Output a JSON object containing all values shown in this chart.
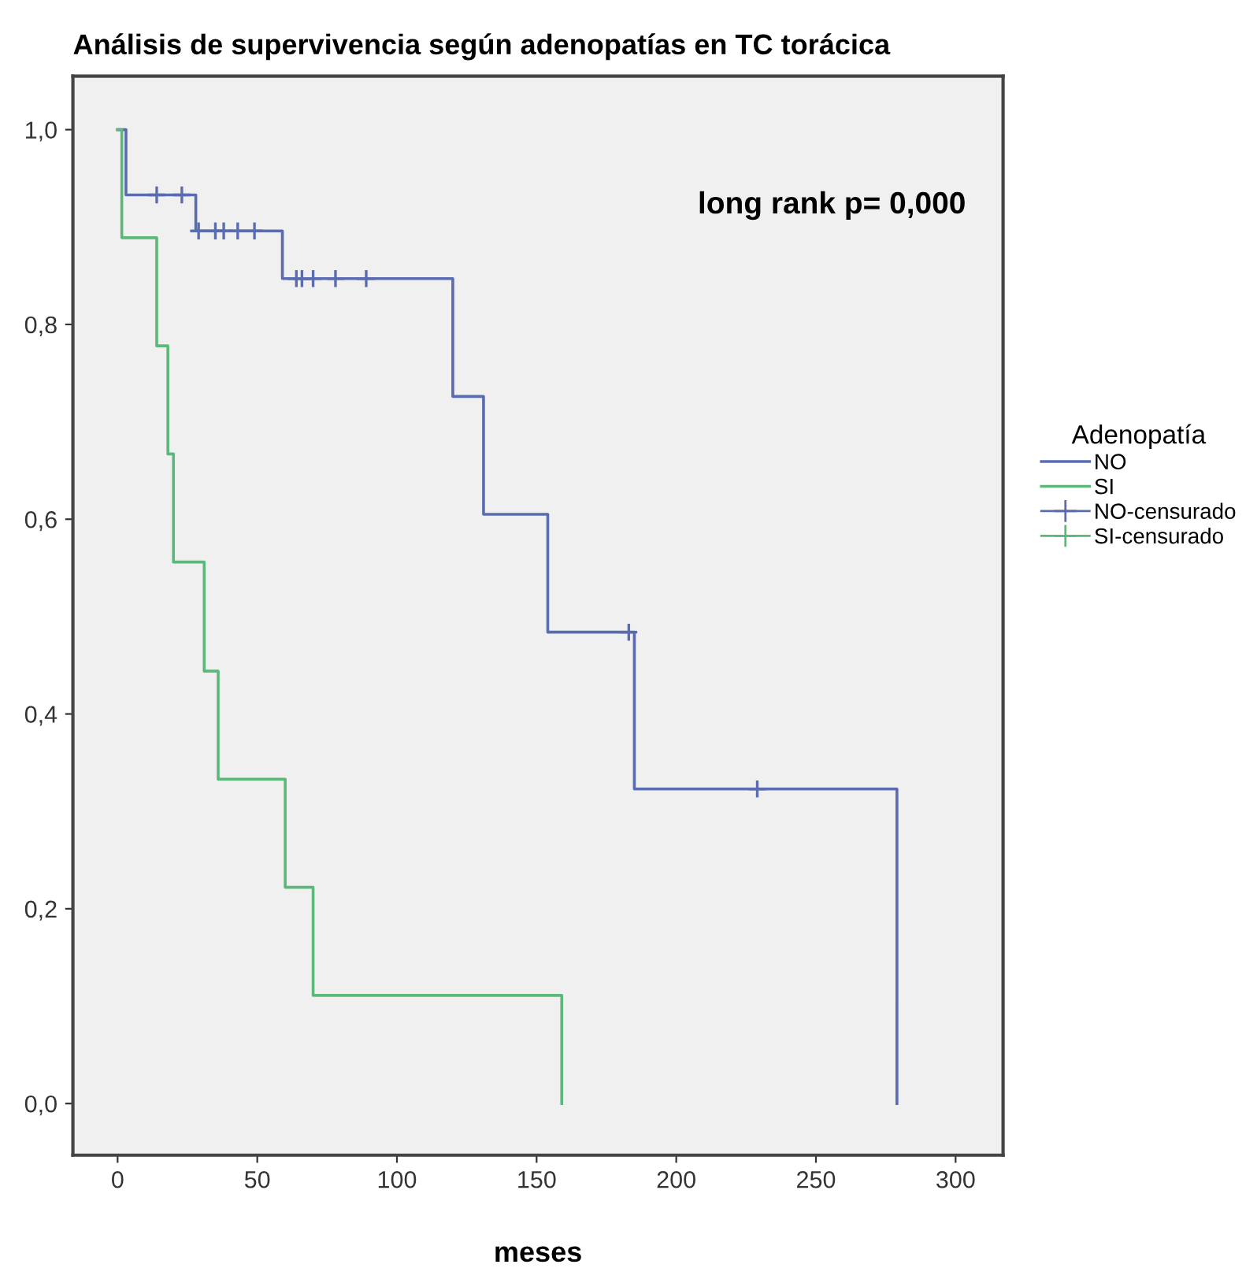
{
  "chart_data": {
    "type": "step",
    "title": "Análisis de supervivencia según adenopatías en TC torácica",
    "xlabel": "meses",
    "legend_title": "Adenopatía",
    "legend": "right",
    "grid": false,
    "annotations": [
      "long rank p= 0,000"
    ],
    "xlim": [
      -16,
      317
    ],
    "xticks": [
      0,
      50,
      100,
      150,
      200,
      250,
      300
    ],
    "ylim": [
      -0.053,
      1.055
    ],
    "yticks": [
      {
        "value": 0.0,
        "label": "0,0"
      },
      {
        "value": 0.2,
        "label": "0,2"
      },
      {
        "value": 0.4,
        "label": "0,4"
      },
      {
        "value": 0.6,
        "label": "0,6"
      },
      {
        "value": 0.8,
        "label": "0,8"
      },
      {
        "value": 1.0,
        "label": "1,0"
      }
    ],
    "series": [
      {
        "name": "NO",
        "color": "#5a6bb0",
        "x": [
          0,
          3,
          28,
          59,
          120,
          131,
          154,
          185,
          279
        ],
        "values": [
          1.0,
          0.933,
          0.896,
          0.847,
          0.726,
          0.605,
          0.484,
          0.323,
          0.0
        ]
      },
      {
        "name": "SI",
        "color": "#5cb87a",
        "x": [
          0,
          1.5,
          14,
          18,
          20,
          31,
          36,
          60,
          70,
          159
        ],
        "values": [
          1.0,
          0.889,
          0.778,
          0.667,
          0.556,
          0.444,
          0.333,
          0.222,
          0.111,
          0.0
        ]
      },
      {
        "name": "NO-censurado",
        "type": "scatter",
        "marker": "cross",
        "color": "#5a6bb0",
        "x": [
          14,
          23,
          29,
          35,
          38,
          43,
          49,
          64,
          66,
          70,
          78,
          89,
          183,
          229
        ],
        "values": [
          0.933,
          0.933,
          0.896,
          0.896,
          0.896,
          0.896,
          0.896,
          0.847,
          0.847,
          0.847,
          0.847,
          0.847,
          0.484,
          0.323
        ]
      },
      {
        "name": "SI-censurado",
        "type": "scatter",
        "marker": "cross",
        "color": "#5cb87a"
      }
    ]
  }
}
